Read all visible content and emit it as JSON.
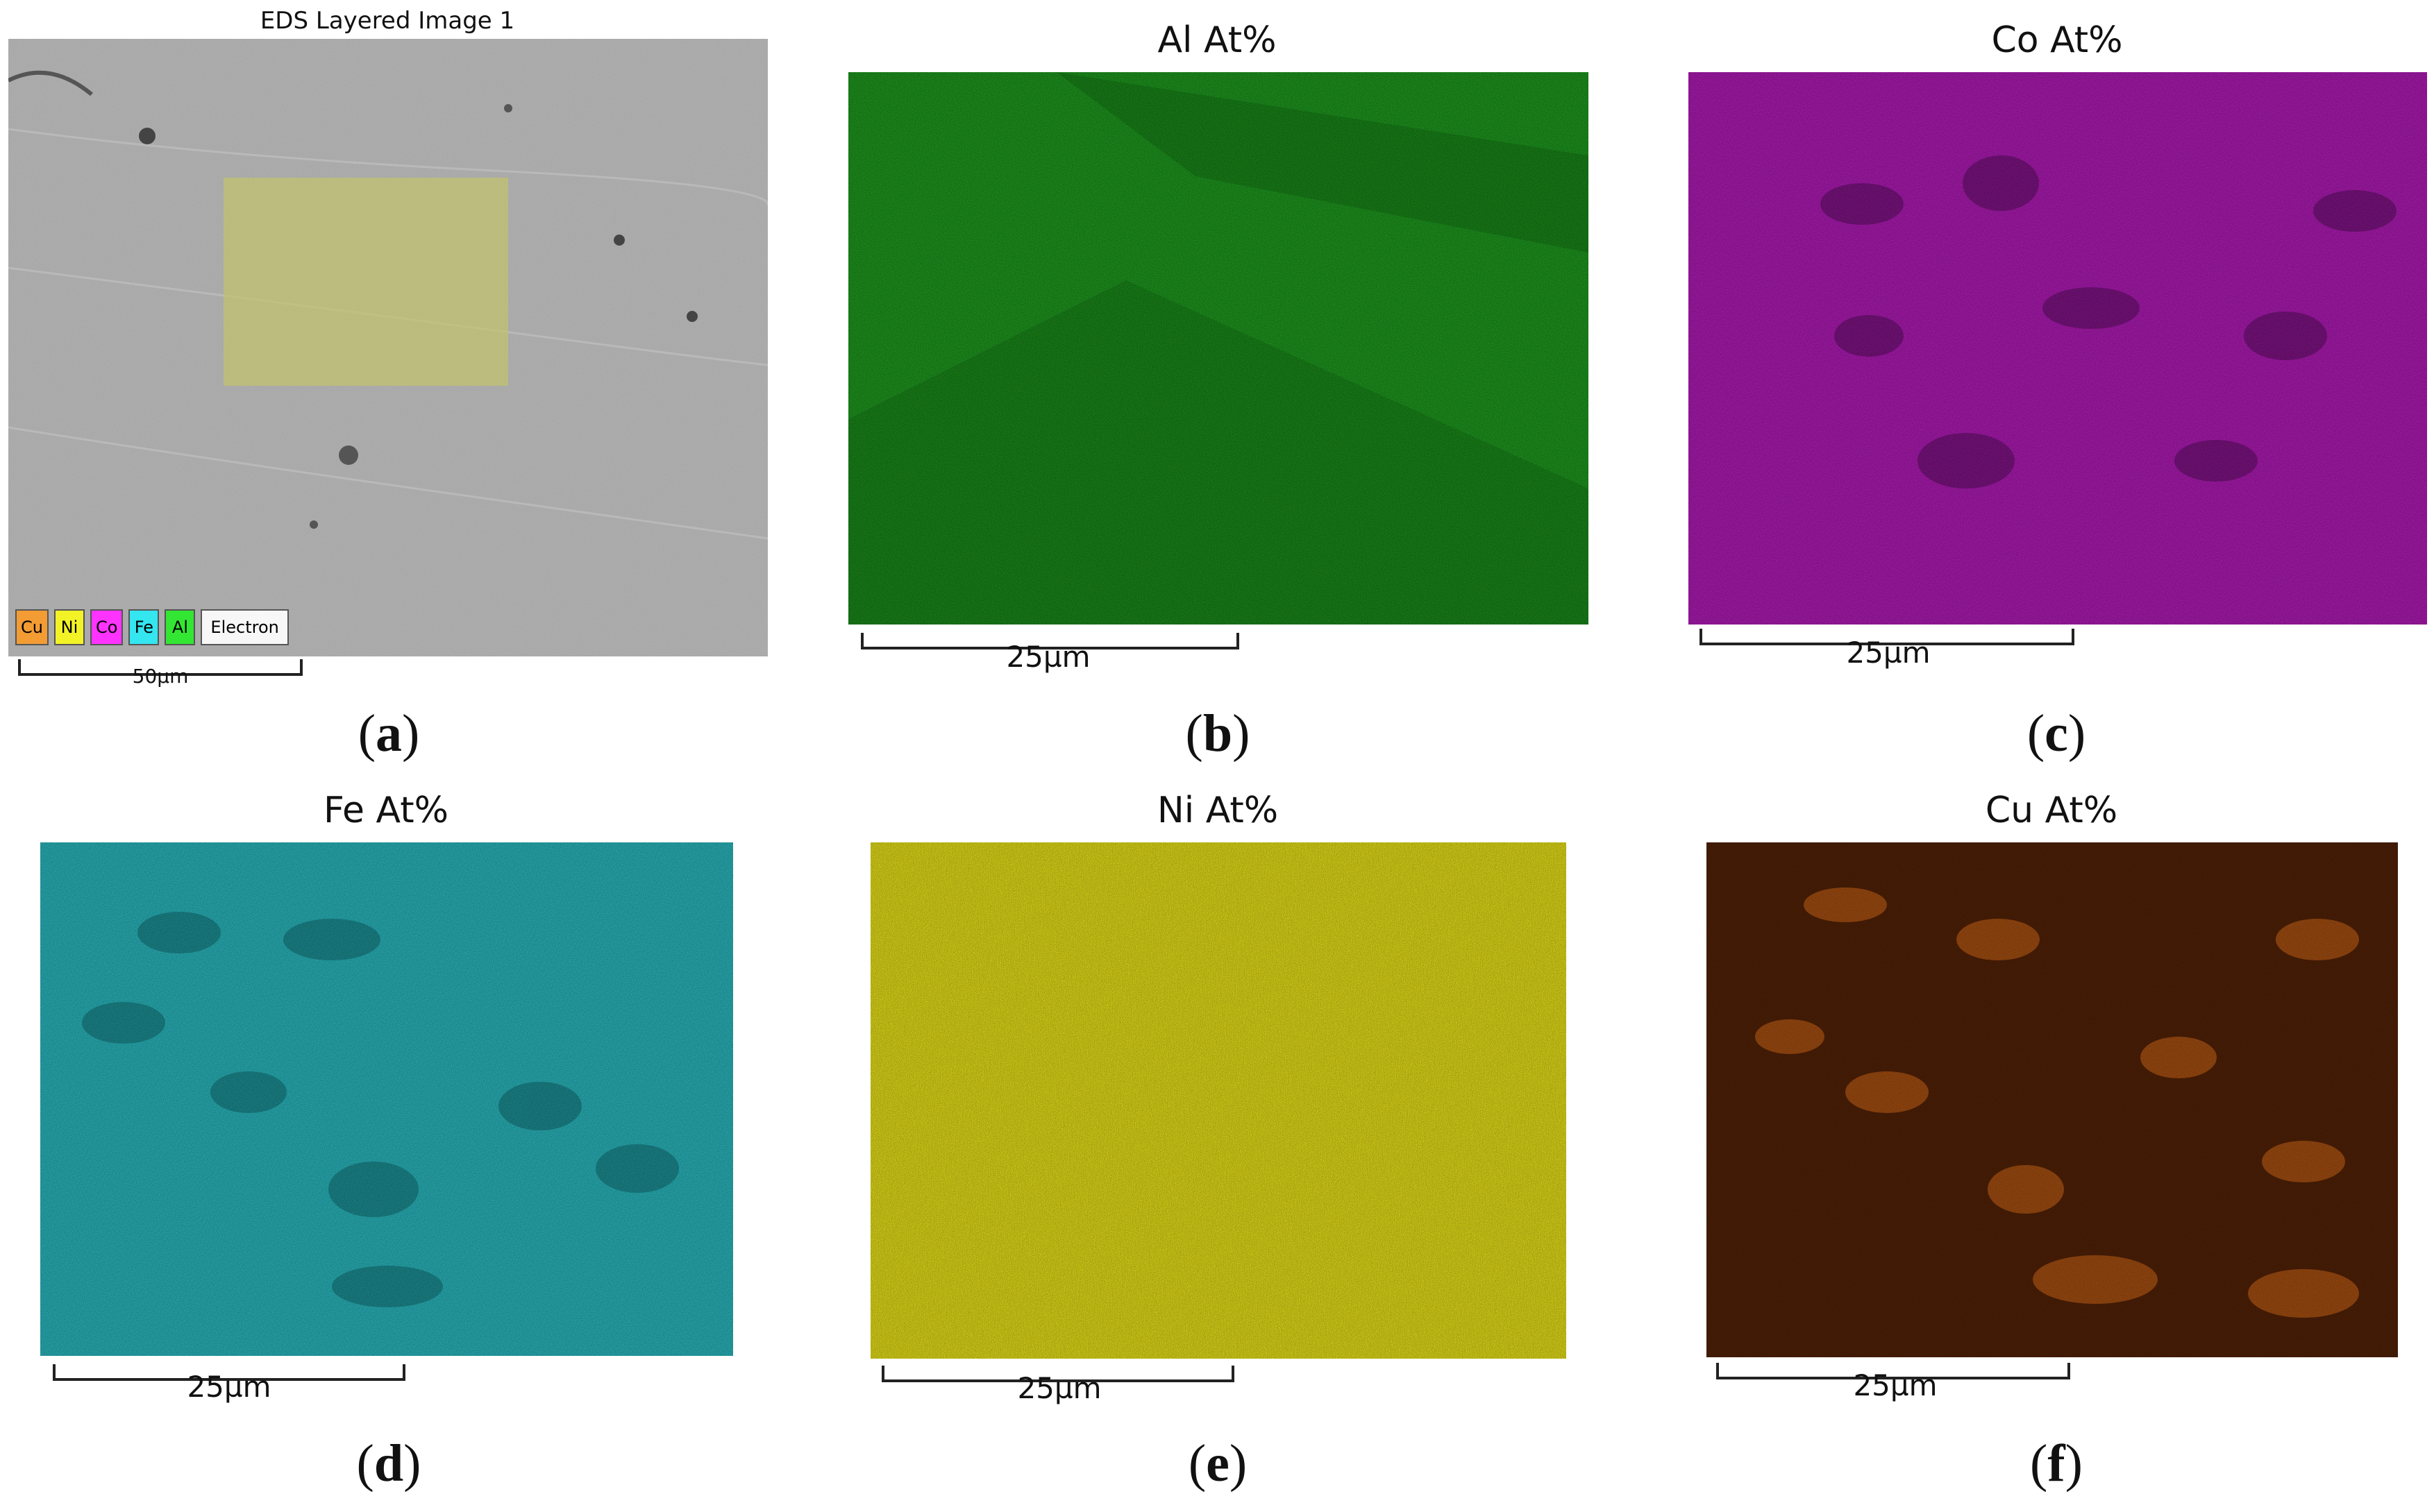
{
  "panels": {
    "a": {
      "title": "EDS Layered Image 1",
      "scale": "50µm",
      "caption": "a",
      "legend": [
        {
          "label": "Cu",
          "color": "#f39c33"
        },
        {
          "label": "Ni",
          "color": "#f2f226"
        },
        {
          "label": "Co",
          "color": "#ff33ff"
        },
        {
          "label": "Fe",
          "color": "#33e6f0"
        },
        {
          "label": "Al",
          "color": "#33e633"
        },
        {
          "label": "Electron",
          "color": "#f7f7f7"
        }
      ]
    },
    "b": {
      "title": "Al At%",
      "scale": "25µm",
      "caption": "b",
      "color": "#1a9a1a"
    },
    "c": {
      "title": "Co At%",
      "scale": "25µm",
      "caption": "c",
      "color": "#b21bb8"
    },
    "d": {
      "title": "Fe At%",
      "scale": "25µm",
      "caption": "d",
      "color": "#22b0b6"
    },
    "e": {
      "title": "Ni At%",
      "scale": "25µm",
      "caption": "e",
      "color": "#e8e21a"
    },
    "f": {
      "title": "Cu At%",
      "scale": "25µm",
      "caption": "f",
      "color": "#5a2608"
    }
  }
}
